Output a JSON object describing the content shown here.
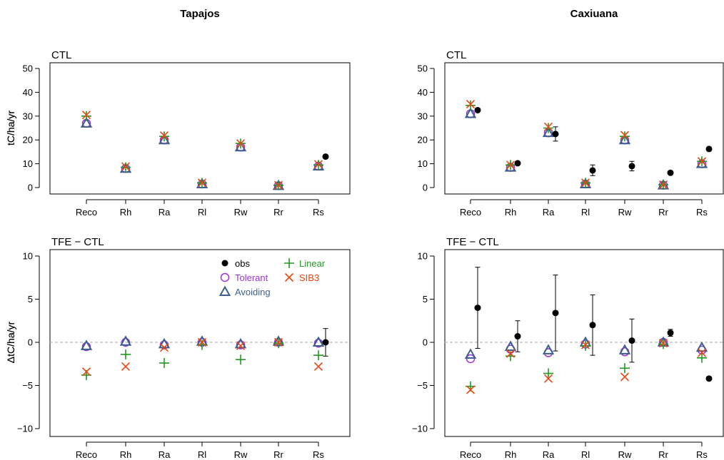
{
  "columns": [
    "Tapajos",
    "Caxiuana"
  ],
  "categories": [
    "Reco",
    "Rh",
    "Ra",
    "Rl",
    "Rw",
    "Rr",
    "Rs"
  ],
  "colors": {
    "obs": "#000000",
    "Linear": "#229922",
    "Tolerant": "#9933dd",
    "SIB3": "#ee4411",
    "Avoiding": "#3d5f8e",
    "zero_line": "#bbbbbb"
  },
  "legend": {
    "entries": [
      {
        "key": "obs",
        "label": "obs",
        "marker": "filled-circle"
      },
      {
        "key": "Linear",
        "label": "Linear",
        "marker": "plus"
      },
      {
        "key": "Tolerant",
        "label": "Tolerant",
        "marker": "open-circle"
      },
      {
        "key": "SIB3",
        "label": "SIB3",
        "marker": "cross"
      },
      {
        "key": "Avoiding",
        "label": "Avoiding",
        "marker": "open-triangle"
      }
    ],
    "placement": "top-right of bottom-left panel"
  },
  "chart_data": [
    {
      "type": "scatter",
      "site": "Tapajos",
      "title": "CTL",
      "ylabel": "tC/ha/yr",
      "ylim": [
        0,
        50
      ],
      "yticks": [
        0,
        10,
        20,
        30,
        40,
        50
      ],
      "zero_line": false,
      "series": [
        {
          "name": "Tolerant",
          "values": [
            27,
            8,
            20,
            1.5,
            17,
            0.8,
            9
          ]
        },
        {
          "name": "Avoiding",
          "values": [
            27,
            8,
            20,
            1.5,
            17,
            0.8,
            9
          ]
        },
        {
          "name": "Linear",
          "values": [
            30,
            8.5,
            21.5,
            2,
            18.5,
            1,
            9.5
          ]
        },
        {
          "name": "SIB3",
          "values": [
            30.5,
            8.8,
            21.8,
            2,
            18.5,
            1,
            9.8
          ]
        },
        {
          "name": "obs",
          "values": [
            null,
            null,
            null,
            null,
            null,
            null,
            13
          ]
        }
      ],
      "errors": []
    },
    {
      "type": "scatter",
      "site": "Caxiuana",
      "title": "CTL",
      "ylabel": "tC/ha/yr",
      "ylim": [
        0,
        50
      ],
      "yticks": [
        0,
        10,
        20,
        30,
        40,
        50
      ],
      "zero_line": false,
      "series": [
        {
          "name": "Tolerant",
          "values": [
            31,
            8.5,
            23,
            1.5,
            20,
            1,
            10
          ]
        },
        {
          "name": "Avoiding",
          "values": [
            31,
            8.5,
            23,
            1.5,
            20,
            1,
            10
          ]
        },
        {
          "name": "Linear",
          "values": [
            34.5,
            9.5,
            25,
            2,
            21.5,
            1.2,
            11
          ]
        },
        {
          "name": "SIB3",
          "values": [
            35,
            9.5,
            25.5,
            2,
            22,
            1.2,
            11
          ]
        },
        {
          "name": "obs",
          "values": [
            32.5,
            10.2,
            22.5,
            7.2,
            9,
            6.2,
            16.2
          ]
        }
      ],
      "errors": [
        {
          "category": "Ra",
          "lo": 19.5,
          "hi": 25.5
        },
        {
          "category": "Rl",
          "lo": 5,
          "hi": 9.5
        },
        {
          "category": "Rw",
          "lo": 7,
          "hi": 11
        }
      ]
    },
    {
      "type": "scatter",
      "site": "Tapajos",
      "title": "TFE − CTL",
      "ylabel": "ΔtC/ha/yr",
      "ylim": [
        -10,
        10
      ],
      "yticks": [
        -10,
        -5,
        0,
        5,
        10
      ],
      "zero_line": true,
      "series": [
        {
          "name": "Tolerant",
          "values": [
            -0.5,
            0,
            -0.3,
            0,
            -0.3,
            0,
            -0.1
          ]
        },
        {
          "name": "Avoiding",
          "values": [
            -0.4,
            0.1,
            -0.2,
            0.1,
            -0.2,
            0.1,
            0
          ]
        },
        {
          "name": "Linear",
          "values": [
            -3.8,
            -1.4,
            -2.4,
            -0.3,
            -2,
            -0.1,
            -1.5
          ]
        },
        {
          "name": "SIB3",
          "values": [
            -3.4,
            -2.8,
            -0.6,
            0,
            -0.4,
            0,
            -2.8
          ]
        },
        {
          "name": "obs",
          "values": [
            null,
            null,
            null,
            null,
            null,
            null,
            0
          ]
        }
      ],
      "errors": [
        {
          "category": "Rs",
          "lo": -1.6,
          "hi": 1.6
        }
      ]
    },
    {
      "type": "scatter",
      "site": "Caxiuana",
      "title": "TFE − CTL",
      "ylabel": "ΔtC/ha/yr",
      "ylim": [
        -10,
        10
      ],
      "yticks": [
        -10,
        -5,
        0,
        5,
        10
      ],
      "zero_line": true,
      "series": [
        {
          "name": "Tolerant",
          "values": [
            -1.9,
            -0.8,
            -1.2,
            -0.2,
            -1.1,
            0,
            -0.9
          ]
        },
        {
          "name": "Avoiding",
          "values": [
            -1.4,
            -0.5,
            -0.9,
            0,
            -0.9,
            0,
            -0.6
          ]
        },
        {
          "name": "Linear",
          "values": [
            -5.1,
            -1.6,
            -3.6,
            -0.4,
            -3,
            -0.2,
            -1.8
          ]
        },
        {
          "name": "SIB3",
          "values": [
            -5.5,
            -1.3,
            -4.2,
            -0.3,
            -4,
            -0.1,
            -1.2
          ]
        },
        {
          "name": "obs",
          "values": [
            4,
            0.7,
            3.4,
            2,
            0.2,
            1.1,
            -4.2
          ]
        }
      ],
      "errors": [
        {
          "category": "Reco",
          "lo": -0.7,
          "hi": 8.7
        },
        {
          "category": "Rh",
          "lo": -1.1,
          "hi": 2.5
        },
        {
          "category": "Ra",
          "lo": -1,
          "hi": 7.8
        },
        {
          "category": "Rl",
          "lo": -1.5,
          "hi": 5.5
        },
        {
          "category": "Rw",
          "lo": -2.3,
          "hi": 2.7
        },
        {
          "category": "Rr",
          "lo": 0.7,
          "hi": 1.5
        }
      ]
    }
  ]
}
